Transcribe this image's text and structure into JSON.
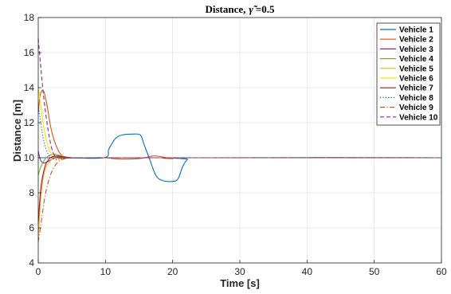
{
  "chart_data": {
    "type": "line",
    "title": "Distance, γ̃ =0.5",
    "title_main": "Distance,",
    "title_symbol": "γ̃",
    "title_value": "=0.5",
    "xlabel": "Time [s]",
    "ylabel": "Distance [m]",
    "xlim": [
      0,
      60
    ],
    "ylim": [
      4,
      18
    ],
    "xticks": [
      0,
      10,
      20,
      30,
      40,
      50,
      60
    ],
    "yticks": [
      4,
      6,
      8,
      10,
      12,
      14,
      16,
      18
    ],
    "grid": true,
    "legend_position": "top-right",
    "series": [
      {
        "name": "Vehicle 1",
        "color": "#0072BD",
        "dash": "solid",
        "x": [
          0,
          1,
          2,
          4,
          9.8,
          10.5,
          11.5,
          12.5,
          14,
          15.2,
          15.7,
          16.5,
          17.5,
          18.5,
          20,
          20.8,
          21.5,
          22.2,
          23,
          60
        ],
        "y": [
          10,
          10,
          10,
          10,
          10,
          10.5,
          11.1,
          11.3,
          11.35,
          11.3,
          10.8,
          10,
          9.0,
          8.7,
          8.65,
          8.8,
          9.5,
          9.9,
          10,
          10
        ]
      },
      {
        "name": "Vehicle 2",
        "color": "#D95319",
        "dash": "solid",
        "x": [
          0,
          0.3,
          0.8,
          1.3,
          2,
          3,
          4,
          5,
          8,
          10,
          12,
          15,
          17,
          18,
          20,
          22,
          60
        ],
        "y": [
          12.5,
          13.6,
          13.8,
          13.0,
          11.5,
          10.4,
          10.0,
          10.0,
          10,
          10,
          9.93,
          9.95,
          10.1,
          10.08,
          9.95,
          10,
          10
        ]
      },
      {
        "name": "Vehicle 3",
        "color": "#7E2F8E",
        "dash": "solid",
        "x": [
          0,
          0.3,
          0.8,
          1.5,
          2.5,
          3.5,
          5,
          8,
          60
        ],
        "y": [
          10.4,
          9.9,
          9.7,
          9.8,
          10.0,
          10.05,
          10.0,
          10,
          10
        ]
      },
      {
        "name": "Vehicle 4",
        "color": "#77AC30",
        "dash": "solid",
        "x": [
          0,
          0.3,
          0.8,
          1.5,
          2.5,
          3.5,
          5,
          8,
          60
        ],
        "y": [
          9.0,
          9.4,
          9.8,
          10.1,
          10.2,
          10.1,
          10.0,
          10,
          10
        ]
      },
      {
        "name": "Vehicle 5",
        "color": "#EDB120",
        "dash": "solid",
        "x": [
          0,
          0.4,
          1,
          2,
          3,
          4,
          5,
          7,
          60
        ],
        "y": [
          5.4,
          7.8,
          9.3,
          9.9,
          10.1,
          10.05,
          10.0,
          10,
          10
        ]
      },
      {
        "name": "Vehicle 6",
        "color": "#FFE600",
        "dash": "solid",
        "x": [
          0,
          0.3,
          0.8,
          1.5,
          2.5,
          3.5,
          4.5,
          6,
          60
        ],
        "y": [
          14.0,
          13.2,
          11.8,
          10.6,
          10.0,
          9.9,
          10.0,
          10,
          10
        ]
      },
      {
        "name": "Vehicle 7",
        "color": "#A2142F",
        "dash": "solid",
        "x": [
          0,
          0.4,
          1,
          1.8,
          2.8,
          3.8,
          5,
          8,
          60
        ],
        "y": [
          6.3,
          8.3,
          9.5,
          10.0,
          10.1,
          10.05,
          10.0,
          10,
          10
        ]
      },
      {
        "name": "Vehicle 8",
        "color": "#0072BD",
        "dash": "dotted",
        "x": [
          0,
          0.3,
          0.8,
          1.5,
          2.5,
          3.5,
          5,
          8,
          60
        ],
        "y": [
          13.0,
          12.2,
          11.0,
          10.2,
          9.9,
          9.95,
          10.0,
          10,
          10
        ]
      },
      {
        "name": "Vehicle 9",
        "color": "#D95319",
        "dash": "dashdot",
        "x": [
          0,
          0.4,
          1,
          1.8,
          2.8,
          4,
          5.5,
          8,
          60
        ],
        "y": [
          5.2,
          6.2,
          7.8,
          9.0,
          9.7,
          9.95,
          10.0,
          10,
          10
        ]
      },
      {
        "name": "Vehicle 10",
        "color": "#7E2F8E",
        "dash": "dashed",
        "x": [
          0,
          0.3,
          0.8,
          1.5,
          2.2,
          3,
          4,
          6,
          60
        ],
        "y": [
          16.8,
          15.5,
          13.5,
          11.5,
          10.3,
          10.0,
          10.0,
          10,
          10
        ]
      }
    ]
  }
}
